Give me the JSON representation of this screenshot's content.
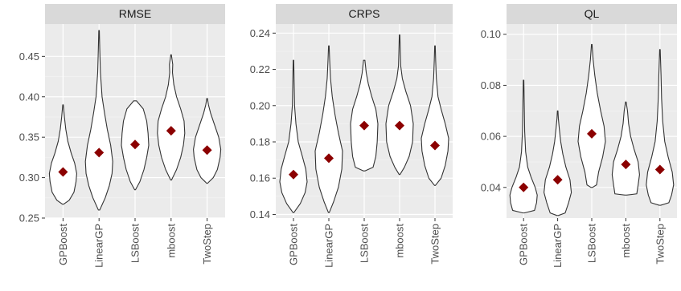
{
  "chart_data": [
    {
      "type": "violin",
      "title": "RMSE",
      "categories": [
        "GPBoost",
        "LinearGP",
        "LSBoost",
        "mboost",
        "TwoStep"
      ],
      "ylim": [
        0.25,
        0.49
      ],
      "yticks": [
        0.25,
        0.3,
        0.35,
        0.4,
        0.45
      ],
      "ytick_labels": [
        "0.25",
        "0.30",
        "0.35",
        "0.40",
        "0.45"
      ],
      "means": [
        0.307,
        0.331,
        0.341,
        0.358,
        0.334
      ],
      "violins": [
        {
          "name": "GPBoost",
          "profile": [
            [
              0.267,
              0.03
            ],
            [
              0.272,
              0.45
            ],
            [
              0.282,
              0.8
            ],
            [
              0.295,
              0.95
            ],
            [
              0.305,
              1.0
            ],
            [
              0.318,
              0.85
            ],
            [
              0.33,
              0.6
            ],
            [
              0.345,
              0.35
            ],
            [
              0.36,
              0.2
            ],
            [
              0.375,
              0.1
            ],
            [
              0.39,
              0.02
            ]
          ]
        },
        {
          "name": "LinearGP",
          "profile": [
            [
              0.26,
              0.05
            ],
            [
              0.275,
              0.45
            ],
            [
              0.29,
              0.75
            ],
            [
              0.305,
              0.95
            ],
            [
              0.32,
              1.0
            ],
            [
              0.34,
              0.85
            ],
            [
              0.36,
              0.6
            ],
            [
              0.38,
              0.4
            ],
            [
              0.4,
              0.22
            ],
            [
              0.43,
              0.1
            ],
            [
              0.46,
              0.05
            ],
            [
              0.482,
              0.02
            ]
          ]
        },
        {
          "name": "LSBoost",
          "profile": [
            [
              0.285,
              0.03
            ],
            [
              0.295,
              0.35
            ],
            [
              0.31,
              0.65
            ],
            [
              0.325,
              0.85
            ],
            [
              0.34,
              1.0
            ],
            [
              0.355,
              0.95
            ],
            [
              0.37,
              0.85
            ],
            [
              0.385,
              0.6
            ],
            [
              0.395,
              0.1
            ]
          ]
        },
        {
          "name": "mboost",
          "profile": [
            [
              0.297,
              0.03
            ],
            [
              0.31,
              0.4
            ],
            [
              0.325,
              0.7
            ],
            [
              0.34,
              0.9
            ],
            [
              0.355,
              1.0
            ],
            [
              0.37,
              0.95
            ],
            [
              0.385,
              0.7
            ],
            [
              0.4,
              0.4
            ],
            [
              0.415,
              0.2
            ],
            [
              0.43,
              0.1
            ],
            [
              0.44,
              0.12
            ],
            [
              0.452,
              0.02
            ]
          ]
        },
        {
          "name": "TwoStep",
          "profile": [
            [
              0.293,
              0.03
            ],
            [
              0.3,
              0.45
            ],
            [
              0.31,
              0.75
            ],
            [
              0.325,
              0.95
            ],
            [
              0.335,
              1.0
            ],
            [
              0.35,
              0.85
            ],
            [
              0.365,
              0.55
            ],
            [
              0.38,
              0.25
            ],
            [
              0.39,
              0.1
            ],
            [
              0.398,
              0.02
            ]
          ]
        }
      ]
    },
    {
      "type": "violin",
      "title": "CRPS",
      "categories": [
        "GPBoost",
        "LinearGP",
        "LSBoost",
        "mboost",
        "TwoStep"
      ],
      "ylim": [
        0.138,
        0.245
      ],
      "yticks": [
        0.14,
        0.16,
        0.18,
        0.2,
        0.22,
        0.24
      ],
      "ytick_labels": [
        "0.14",
        "0.16",
        "0.18",
        "0.20",
        "0.22",
        "0.24"
      ],
      "means": [
        0.162,
        0.171,
        0.189,
        0.189,
        0.178
      ],
      "violins": [
        {
          "name": "GPBoost",
          "profile": [
            [
              0.141,
              0.03
            ],
            [
              0.146,
              0.5
            ],
            [
              0.152,
              0.85
            ],
            [
              0.158,
              1.0
            ],
            [
              0.165,
              0.9
            ],
            [
              0.172,
              0.65
            ],
            [
              0.18,
              0.35
            ],
            [
              0.19,
              0.18
            ],
            [
              0.2,
              0.08
            ],
            [
              0.212,
              0.05
            ],
            [
              0.225,
              0.02
            ]
          ]
        },
        {
          "name": "LinearGP",
          "profile": [
            [
              0.141,
              0.03
            ],
            [
              0.147,
              0.35
            ],
            [
              0.155,
              0.7
            ],
            [
              0.165,
              0.95
            ],
            [
              0.175,
              1.0
            ],
            [
              0.185,
              0.7
            ],
            [
              0.195,
              0.45
            ],
            [
              0.205,
              0.25
            ],
            [
              0.215,
              0.12
            ],
            [
              0.225,
              0.06
            ],
            [
              0.233,
              0.02
            ]
          ]
        },
        {
          "name": "LSBoost",
          "profile": [
            [
              0.164,
              0.05
            ],
            [
              0.166,
              0.65
            ],
            [
              0.172,
              0.85
            ],
            [
              0.18,
              0.95
            ],
            [
              0.19,
              1.0
            ],
            [
              0.198,
              0.85
            ],
            [
              0.205,
              0.55
            ],
            [
              0.212,
              0.3
            ],
            [
              0.218,
              0.15
            ],
            [
              0.225,
              0.05
            ]
          ]
        },
        {
          "name": "mboost",
          "profile": [
            [
              0.162,
              0.03
            ],
            [
              0.166,
              0.35
            ],
            [
              0.172,
              0.7
            ],
            [
              0.18,
              0.95
            ],
            [
              0.19,
              1.0
            ],
            [
              0.2,
              0.8
            ],
            [
              0.208,
              0.45
            ],
            [
              0.215,
              0.2
            ],
            [
              0.222,
              0.08
            ],
            [
              0.23,
              0.05
            ],
            [
              0.239,
              0.02
            ]
          ]
        },
        {
          "name": "TwoStep",
          "profile": [
            [
              0.156,
              0.03
            ],
            [
              0.16,
              0.45
            ],
            [
              0.167,
              0.75
            ],
            [
              0.175,
              0.95
            ],
            [
              0.182,
              1.0
            ],
            [
              0.19,
              0.75
            ],
            [
              0.198,
              0.45
            ],
            [
              0.205,
              0.22
            ],
            [
              0.215,
              0.1
            ],
            [
              0.225,
              0.05
            ],
            [
              0.233,
              0.02
            ]
          ]
        }
      ]
    },
    {
      "type": "violin",
      "title": "QL",
      "categories": [
        "GPBoost",
        "LinearGP",
        "LSBoost",
        "mboost",
        "TwoStep"
      ],
      "ylim": [
        0.028,
        0.104
      ],
      "yticks": [
        0.04,
        0.06,
        0.08,
        0.1
      ],
      "ytick_labels": [
        "0.04",
        "0.06",
        "0.08",
        "0.10"
      ],
      "means": [
        0.04,
        0.043,
        0.061,
        0.049,
        0.047
      ],
      "violins": [
        {
          "name": "GPBoost",
          "profile": [
            [
              0.03,
              0.05
            ],
            [
              0.031,
              0.8
            ],
            [
              0.034,
              0.95
            ],
            [
              0.037,
              1.0
            ],
            [
              0.04,
              0.85
            ],
            [
              0.044,
              0.55
            ],
            [
              0.048,
              0.3
            ],
            [
              0.054,
              0.15
            ],
            [
              0.062,
              0.08
            ],
            [
              0.072,
              0.05
            ],
            [
              0.082,
              0.02
            ]
          ]
        },
        {
          "name": "LinearGP",
          "profile": [
            [
              0.029,
              0.05
            ],
            [
              0.03,
              0.55
            ],
            [
              0.034,
              0.8
            ],
            [
              0.038,
              1.0
            ],
            [
              0.043,
              0.9
            ],
            [
              0.048,
              0.6
            ],
            [
              0.053,
              0.38
            ],
            [
              0.058,
              0.22
            ],
            [
              0.063,
              0.12
            ],
            [
              0.067,
              0.05
            ],
            [
              0.07,
              0.02
            ]
          ]
        },
        {
          "name": "LSBoost",
          "profile": [
            [
              0.04,
              0.05
            ],
            [
              0.041,
              0.35
            ],
            [
              0.046,
              0.5
            ],
            [
              0.052,
              0.8
            ],
            [
              0.058,
              1.0
            ],
            [
              0.064,
              0.9
            ],
            [
              0.07,
              0.65
            ],
            [
              0.077,
              0.4
            ],
            [
              0.084,
              0.22
            ],
            [
              0.09,
              0.1
            ],
            [
              0.096,
              0.02
            ]
          ]
        },
        {
          "name": "mboost",
          "profile": [
            [
              0.037,
              0.06
            ],
            [
              0.0375,
              0.8
            ],
            [
              0.041,
              0.9
            ],
            [
              0.045,
              1.0
            ],
            [
              0.05,
              0.9
            ],
            [
              0.055,
              0.6
            ],
            [
              0.06,
              0.35
            ],
            [
              0.065,
              0.2
            ],
            [
              0.07,
              0.12
            ],
            [
              0.0735,
              0.02
            ]
          ]
        },
        {
          "name": "TwoStep",
          "profile": [
            [
              0.033,
              0.05
            ],
            [
              0.034,
              0.65
            ],
            [
              0.037,
              0.85
            ],
            [
              0.041,
              1.0
            ],
            [
              0.046,
              0.9
            ],
            [
              0.052,
              0.6
            ],
            [
              0.058,
              0.35
            ],
            [
              0.066,
              0.2
            ],
            [
              0.075,
              0.12
            ],
            [
              0.084,
              0.08
            ],
            [
              0.094,
              0.02
            ]
          ]
        }
      ]
    }
  ]
}
